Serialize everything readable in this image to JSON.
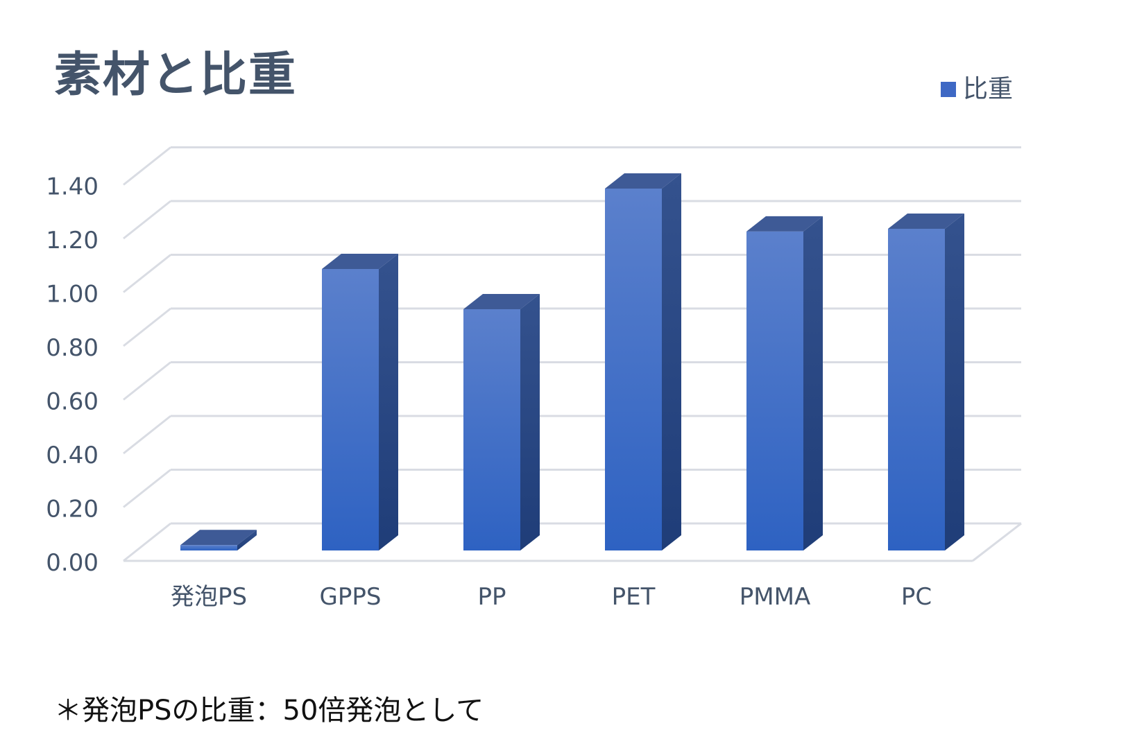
{
  "chart_data": {
    "type": "bar",
    "title": "素材と比重",
    "categories": [
      "発泡PS",
      "GPPS",
      "PP",
      "PET",
      "PMMA",
      "PC"
    ],
    "series": [
      {
        "name": "比重",
        "values": [
          0.02,
          1.05,
          0.9,
          1.35,
          1.19,
          1.2
        ]
      }
    ],
    "ylim": [
      0,
      1.4
    ],
    "yticks": [
      "0.00",
      "0.20",
      "0.40",
      "0.60",
      "0.80",
      "1.00",
      "1.20",
      "1.40"
    ],
    "xlabel": "",
    "ylabel": "",
    "grid": true,
    "legend_position": "top-right",
    "style": "3d-column",
    "colors": {
      "bar_front_top": "#5B80CC",
      "bar_front_bottom": "#2E62C2",
      "bar_side": "#2A4A86",
      "bar_top": "#3E5A96",
      "grid": "#D9DCE3",
      "axis_text": "#44546A",
      "title": "#44546A"
    }
  },
  "footnote": "＊発泡PSの比重：50倍発泡として"
}
